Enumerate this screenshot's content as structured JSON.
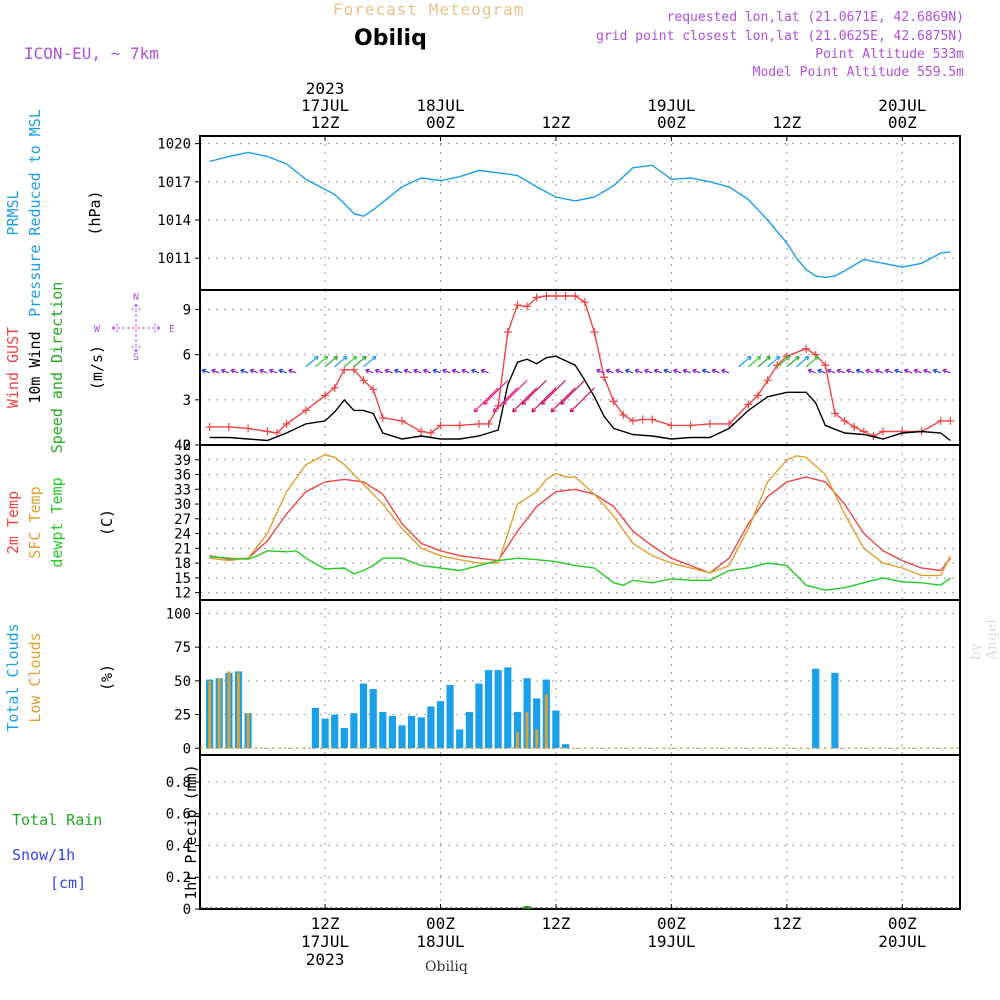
{
  "header": {
    "title": "Forecast Meteogram",
    "station": "Obiliq",
    "model": "ICON-EU, ~ 7km",
    "requested": "requested lon,lat (21.0671E, 42.6869N)",
    "gridpoint": "grid point closest lon,lat (21.0625E, 42.6875N)",
    "point_alt": "Point Altitude 533m",
    "model_alt": "Model Point Altitude 559.5m"
  },
  "footer": {
    "station": "Obiliq",
    "watermark": "by Angel"
  },
  "colors": {
    "pressure": "#1aa0e8",
    "gust": "#ee4444",
    "wind10m": "#000000",
    "direction_green": "#22aa22",
    "t2m": "#ee4444",
    "tsfc": "#e0a030",
    "dewpt": "#22cc22",
    "total_clouds": "#1aa0e8",
    "low_clouds": "#e0a030",
    "rain": "#22aa22",
    "snow": "#3344ee",
    "meta": "#b14fd8"
  },
  "time_axis": {
    "top": [
      {
        "t": 12,
        "lines": [
          "2023",
          "17JUL",
          "12Z"
        ]
      },
      {
        "t": 24,
        "lines": [
          "18JUL",
          "00Z"
        ]
      },
      {
        "t": 36,
        "lines": [
          "12Z"
        ]
      },
      {
        "t": 48,
        "lines": [
          "19JUL",
          "00Z"
        ]
      },
      {
        "t": 60,
        "lines": [
          "12Z"
        ]
      },
      {
        "t": 72,
        "lines": [
          "20JUL",
          "00Z"
        ]
      }
    ],
    "bottom": [
      {
        "t": 12,
        "lines": [
          "12Z",
          "17JUL",
          "2023"
        ]
      },
      {
        "t": 24,
        "lines": [
          "00Z",
          "18JUL"
        ]
      },
      {
        "t": 36,
        "lines": [
          "12Z"
        ]
      },
      {
        "t": 48,
        "lines": [
          "00Z",
          "19JUL"
        ]
      },
      {
        "t": 60,
        "lines": [
          "12Z"
        ]
      },
      {
        "t": 72,
        "lines": [
          "00Z",
          "20JUL"
        ]
      }
    ]
  },
  "chart_data": [
    {
      "type": "line",
      "panel": "pressure",
      "ylabels": [
        {
          "text": "PRMSL",
          "color": "#1aa0e8"
        },
        {
          "text": "Pressure Reduced to MSL",
          "color": "#1aa0e8"
        },
        {
          "text": "(hPa)",
          "color": "#000000"
        }
      ],
      "yticks": [
        1011,
        1014,
        1017,
        1020
      ],
      "ylim": [
        1008.5,
        1020.6
      ],
      "series": [
        {
          "name": "PRMSL",
          "x": [
            0,
            2,
            4,
            6,
            8,
            10,
            12,
            13,
            14,
            15,
            16,
            17,
            18,
            20,
            22,
            24,
            26,
            28,
            30,
            32,
            34,
            36,
            38,
            40,
            42,
            44,
            46,
            48,
            50,
            52,
            54,
            56,
            58,
            59,
            60,
            61,
            62,
            63,
            64,
            65,
            66,
            68,
            70,
            72,
            74,
            76,
            77
          ],
          "y": [
            1018.6,
            1019.0,
            1019.3,
            1019.0,
            1018.4,
            1017.2,
            1016.4,
            1016.0,
            1015.3,
            1014.5,
            1014.3,
            1014.8,
            1015.4,
            1016.6,
            1017.3,
            1017.1,
            1017.4,
            1017.9,
            1017.7,
            1017.5,
            1016.6,
            1015.8,
            1015.5,
            1015.8,
            1016.7,
            1018.1,
            1018.3,
            1017.2,
            1017.3,
            1017.0,
            1016.6,
            1015.6,
            1014.0,
            1013.1,
            1012.2,
            1011.0,
            1010.1,
            1009.6,
            1009.5,
            1009.6,
            1010.0,
            1010.9,
            1010.6,
            1010.3,
            1010.6,
            1011.4,
            1011.5
          ]
        }
      ]
    },
    {
      "type": "line",
      "panel": "wind",
      "ylabels": [
        {
          "text": "Wind GUST",
          "color": "#ee4444"
        },
        {
          "text": "10m Wind",
          "color": "#000000"
        },
        {
          "text": "Speed and Direction",
          "color": "#22aa22"
        },
        {
          "text": "(m/s)",
          "color": "#000000"
        }
      ],
      "yticks": [
        0,
        3,
        6,
        9
      ],
      "ylim": [
        0,
        10.3
      ],
      "compass": {
        "n": "N",
        "s": "S",
        "w": "W",
        "e": "E"
      },
      "series": [
        {
          "name": "Wind GUST",
          "x": [
            0,
            2,
            4,
            6,
            7,
            8,
            10,
            12,
            13,
            14,
            15,
            16,
            17,
            18,
            20,
            22,
            23,
            24,
            26,
            28,
            29,
            30,
            31,
            32,
            33,
            34,
            35,
            36,
            37,
            38,
            39,
            40,
            41,
            42,
            43,
            44,
            45,
            46,
            48,
            50,
            52,
            54,
            56,
            57,
            58,
            59,
            60,
            62,
            63,
            64,
            65,
            66,
            67,
            68,
            69,
            70,
            72,
            74,
            76,
            77
          ],
          "y": [
            1.2,
            1.2,
            1.1,
            0.9,
            0.8,
            1.4,
            2.3,
            3.3,
            3.8,
            5.0,
            5.0,
            4.3,
            3.7,
            1.8,
            1.6,
            0.9,
            0.8,
            1.3,
            1.3,
            1.4,
            1.4,
            2.6,
            7.5,
            9.3,
            9.2,
            9.8,
            9.9,
            9.9,
            9.9,
            9.9,
            9.5,
            7.5,
            4.5,
            2.9,
            2.0,
            1.6,
            1.7,
            1.7,
            1.3,
            1.3,
            1.4,
            1.4,
            2.7,
            3.3,
            4.3,
            5.3,
            5.9,
            6.4,
            6.0,
            5.3,
            2.1,
            1.6,
            1.2,
            0.9,
            0.6,
            0.9,
            0.9,
            0.9,
            1.6,
            1.6
          ]
        },
        {
          "name": "10m Wind",
          "x": [
            0,
            2,
            4,
            6,
            8,
            10,
            12,
            13,
            14,
            15,
            16,
            17,
            18,
            20,
            22,
            24,
            26,
            28,
            30,
            31,
            32,
            33,
            34,
            35,
            36,
            37,
            38,
            39,
            40,
            41,
            42,
            44,
            46,
            48,
            50,
            52,
            54,
            56,
            58,
            60,
            62,
            63,
            64,
            66,
            68,
            70,
            72,
            74,
            76,
            77
          ],
          "y": [
            0.5,
            0.5,
            0.4,
            0.3,
            0.8,
            1.4,
            1.6,
            2.2,
            3.0,
            2.3,
            2.3,
            2.1,
            0.8,
            0.4,
            0.6,
            0.4,
            0.4,
            0.6,
            1.0,
            4.0,
            5.5,
            5.7,
            5.4,
            5.8,
            5.9,
            5.6,
            5.3,
            4.3,
            3.2,
            1.9,
            1.1,
            0.7,
            0.6,
            0.4,
            0.5,
            0.5,
            1.1,
            2.3,
            3.2,
            3.5,
            3.5,
            2.8,
            1.3,
            0.8,
            0.7,
            0.4,
            0.8,
            0.9,
            0.8,
            0.3
          ]
        }
      ]
    },
    {
      "type": "line",
      "panel": "temperature",
      "ylabels": [
        {
          "text": "2m Temp",
          "color": "#ee4444"
        },
        {
          "text": "SFC Temp",
          "color": "#e0a030"
        },
        {
          "text": "dewpt Temp",
          "color": "#22cc22"
        },
        {
          "text": "(C)",
          "color": "#000000"
        }
      ],
      "yticks": [
        12,
        15,
        18,
        21,
        24,
        27,
        30,
        33,
        36,
        39,
        42
      ],
      "ylim": [
        10.5,
        42
      ],
      "series": [
        {
          "name": "2m Temp",
          "x": [
            0,
            2,
            4,
            6,
            8,
            10,
            12,
            14,
            16,
            18,
            20,
            22,
            24,
            26,
            28,
            30,
            32,
            34,
            36,
            38,
            40,
            42,
            44,
            46,
            48,
            50,
            52,
            54,
            56,
            58,
            60,
            62,
            64,
            66,
            68,
            70,
            72,
            74,
            76,
            77
          ],
          "y": [
            19.5,
            18.8,
            19.0,
            22.5,
            28.0,
            32.5,
            34.5,
            35.0,
            34.5,
            32.0,
            26.0,
            22.0,
            20.5,
            19.5,
            19.0,
            18.5,
            24.5,
            29.5,
            32.5,
            33.0,
            32.0,
            29.5,
            24.5,
            21.5,
            19.0,
            17.5,
            16.0,
            19.0,
            26.0,
            31.5,
            34.5,
            35.5,
            34.5,
            30.0,
            24.0,
            20.5,
            18.5,
            17.0,
            16.5,
            19.0
          ]
        },
        {
          "name": "SFC Temp",
          "x": [
            0,
            2,
            4,
            6,
            8,
            10,
            12,
            13,
            14,
            16,
            18,
            20,
            22,
            24,
            26,
            28,
            30,
            32,
            34,
            35,
            36,
            37,
            38,
            40,
            42,
            44,
            46,
            48,
            50,
            52,
            54,
            56,
            58,
            60,
            61,
            62,
            64,
            66,
            68,
            70,
            72,
            74,
            76,
            77
          ],
          "y": [
            19.0,
            18.5,
            19.0,
            24.0,
            32.5,
            38.0,
            40.0,
            39.5,
            38.0,
            34.0,
            30.0,
            25.0,
            21.0,
            19.5,
            18.7,
            18.0,
            18.0,
            30.0,
            32.5,
            35.0,
            36.2,
            35.5,
            35.5,
            32.0,
            27.5,
            22.0,
            19.5,
            18.0,
            17.0,
            16.0,
            17.5,
            25.0,
            34.5,
            39.0,
            39.8,
            39.5,
            36.0,
            28.0,
            21.0,
            18.0,
            17.0,
            15.5,
            15.5,
            19.5
          ]
        },
        {
          "name": "dewpt Temp",
          "x": [
            0,
            2,
            4,
            5,
            6,
            8,
            9,
            10,
            12,
            14,
            15,
            16,
            17,
            18,
            20,
            22,
            24,
            26,
            28,
            30,
            32,
            34,
            36,
            38,
            40,
            42,
            43,
            44,
            46,
            48,
            50,
            52,
            54,
            56,
            58,
            60,
            62,
            64,
            66,
            68,
            70,
            72,
            74,
            76,
            77
          ],
          "y": [
            19.3,
            19.0,
            18.8,
            19.5,
            20.5,
            20.3,
            20.5,
            19.0,
            16.8,
            17.0,
            15.8,
            16.5,
            17.5,
            19.0,
            19.0,
            17.5,
            17.0,
            16.5,
            17.5,
            18.5,
            19.0,
            18.7,
            18.3,
            17.5,
            17.0,
            14.0,
            13.5,
            14.5,
            14.0,
            14.8,
            14.5,
            14.5,
            16.5,
            17.0,
            18.0,
            17.5,
            13.5,
            12.5,
            13.0,
            14.0,
            15.0,
            14.2,
            14.0,
            13.5,
            15.0
          ]
        }
      ]
    },
    {
      "type": "bar",
      "panel": "clouds",
      "ylabels": [
        {
          "text": "Total Clouds",
          "color": "#1aa0e8"
        },
        {
          "text": "Low Clouds",
          "color": "#e0a030"
        },
        {
          "text": "(%)",
          "color": "#000000"
        }
      ],
      "yticks": [
        0,
        25,
        50,
        75,
        100
      ],
      "ylim": [
        -5,
        110
      ],
      "series": [
        {
          "name": "Total Clouds",
          "x": [
            0,
            1,
            2,
            3,
            4,
            11,
            12,
            13,
            14,
            15,
            16,
            17,
            18,
            19,
            20,
            21,
            22,
            23,
            24,
            25,
            26,
            27,
            28,
            29,
            30,
            31,
            32,
            33,
            34,
            35,
            36,
            37,
            63,
            65
          ],
          "values": [
            51,
            52,
            56,
            57,
            26,
            30,
            22,
            25,
            15,
            26,
            48,
            44,
            27,
            24,
            17,
            24,
            23,
            31,
            35,
            47,
            14,
            27,
            48,
            58,
            58,
            60,
            27,
            52,
            37,
            51,
            28,
            3,
            59,
            56
          ]
        },
        {
          "name": "Low Clouds",
          "x": [
            0,
            1,
            2,
            3,
            4,
            32,
            33,
            34,
            35
          ],
          "values": [
            50,
            52,
            57,
            56,
            26,
            12,
            27,
            14,
            40
          ]
        }
      ]
    },
    {
      "type": "bar",
      "panel": "precip",
      "ylabels": [
        {
          "text": "Total  Rain",
          "color": "#22aa22"
        },
        {
          "text": "Snow/1h",
          "color": "#3344ee"
        },
        {
          "text": "[cm]",
          "color": "#3344ee"
        },
        {
          "text": "1hr Precip (mm)",
          "color": "#000000"
        }
      ],
      "yticks": [
        0,
        0.2,
        0.4,
        0.6,
        0.8
      ],
      "ylim": [
        0,
        0.97
      ],
      "series": [
        {
          "name": "Total Rain",
          "x": [
            33
          ],
          "values": [
            0.01
          ]
        }
      ]
    }
  ]
}
